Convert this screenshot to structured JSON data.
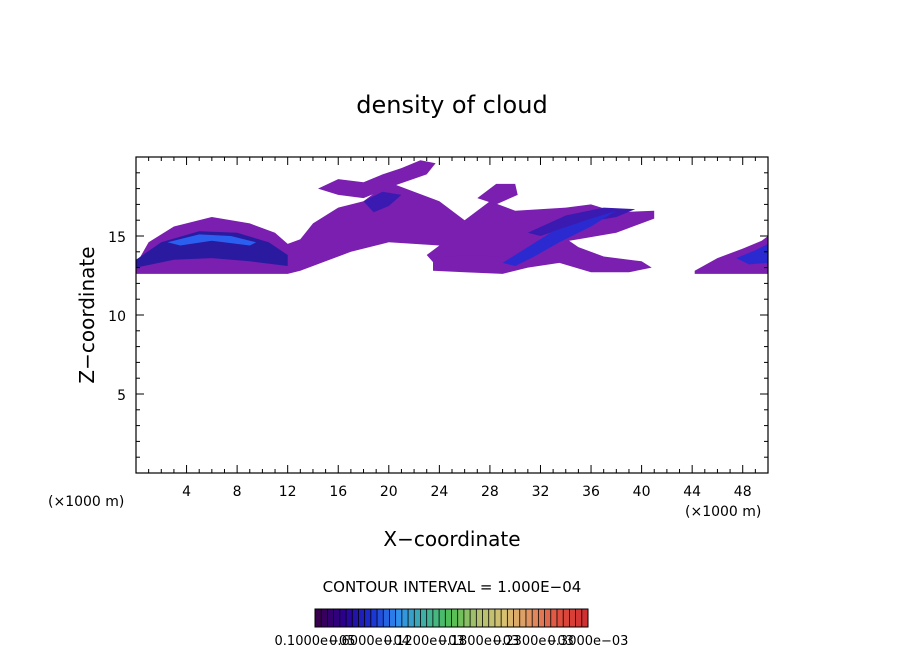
{
  "chart_data": {
    "type": "heatmap",
    "title": "density of cloud",
    "xlabel": "X−coordinate",
    "ylabel": "Z−coordinate",
    "x_unit_left": "(×1000 m)",
    "x_unit_right": "(×1000 m)",
    "xlim": [
      0,
      50
    ],
    "ylim": [
      0,
      20
    ],
    "x_ticks": [
      4,
      8,
      12,
      16,
      20,
      24,
      28,
      32,
      36,
      40,
      44,
      48
    ],
    "y_ticks": [
      5,
      10,
      15
    ],
    "contour_interval": "CONTOUR INTERVAL = 1.000E−04",
    "colorbar_labels": [
      "0.1000e−05",
      "0.6000e−04",
      "0.1200e−03",
      "0.1800e−03",
      "0.2300e−03",
      "0.3000e−03"
    ],
    "colorbar_colors": [
      "#3a0050",
      "#2b0090",
      "#1a2fd0",
      "#2f8ff0",
      "#40b0a0",
      "#50c050",
      "#b0c070",
      "#d8c070",
      "#e09060",
      "#e05040",
      "#d03030"
    ],
    "regions": [
      {
        "name": "main-band",
        "color": "#7a1fb0",
        "points": [
          [
            0,
            13.2
          ],
          [
            1,
            14.6
          ],
          [
            3,
            15.6
          ],
          [
            6,
            16.2
          ],
          [
            9,
            15.8
          ],
          [
            11,
            15.2
          ],
          [
            12,
            14.5
          ],
          [
            13,
            14.8
          ],
          [
            14,
            15.8
          ],
          [
            16,
            16.8
          ],
          [
            18,
            17.2
          ],
          [
            20,
            18.4
          ],
          [
            24,
            17.2
          ],
          [
            26,
            16.0
          ],
          [
            28,
            17.2
          ],
          [
            30,
            16.6
          ],
          [
            34,
            16.8
          ],
          [
            36,
            17.0
          ],
          [
            38,
            16.5
          ],
          [
            41,
            16.6
          ],
          [
            41,
            16.1
          ],
          [
            38,
            15.2
          ],
          [
            35,
            14.8
          ],
          [
            32,
            14.4
          ],
          [
            30,
            13.2
          ],
          [
            27,
            12.8
          ],
          [
            24,
            12.9
          ],
          [
            23,
            13.8
          ],
          [
            24,
            14.4
          ],
          [
            20,
            14.6
          ],
          [
            17,
            14.0
          ],
          [
            15,
            13.4
          ],
          [
            13,
            12.8
          ],
          [
            12,
            12.6
          ],
          [
            10,
            12.6
          ],
          [
            6,
            12.6
          ],
          [
            2,
            12.6
          ],
          [
            0,
            12.6
          ]
        ]
      },
      {
        "name": "top-patch",
        "color": "#7a1fb0",
        "points": [
          [
            14.4,
            18.0
          ],
          [
            16,
            18.6
          ],
          [
            18,
            18.4
          ],
          [
            19.5,
            18.9
          ],
          [
            21,
            19.3
          ],
          [
            22.5,
            19.8
          ],
          [
            23.7,
            19.6
          ],
          [
            23,
            18.9
          ],
          [
            20.5,
            18.2
          ],
          [
            18,
            17.4
          ],
          [
            16,
            17.6
          ]
        ]
      },
      {
        "name": "right-top-patch",
        "color": "#7a1fb0",
        "points": [
          [
            27,
            17.4
          ],
          [
            28.5,
            18.3
          ],
          [
            30,
            18.3
          ],
          [
            30.2,
            17.6
          ],
          [
            28.5,
            17.0
          ]
        ]
      },
      {
        "name": "lower-patch",
        "color": "#7a1fb0",
        "points": [
          [
            23.5,
            13.6
          ],
          [
            26,
            13.8
          ],
          [
            29,
            13.7
          ],
          [
            31,
            14.2
          ],
          [
            33,
            15.4
          ],
          [
            35,
            14.3
          ],
          [
            37,
            13.7
          ],
          [
            40,
            13.4
          ],
          [
            40.8,
            13.0
          ],
          [
            39,
            12.7
          ],
          [
            36,
            12.7
          ],
          [
            33.5,
            13.3
          ],
          [
            31,
            13.0
          ],
          [
            29,
            12.6
          ],
          [
            26,
            12.7
          ],
          [
            23.5,
            12.8
          ]
        ]
      },
      {
        "name": "right-edge-patch",
        "color": "#7a1fb0",
        "points": [
          [
            44.2,
            12.8
          ],
          [
            46,
            13.6
          ],
          [
            48,
            14.2
          ],
          [
            49.5,
            14.7
          ],
          [
            50,
            15.0
          ],
          [
            50,
            12.6
          ],
          [
            44.2,
            12.6
          ]
        ]
      },
      {
        "name": "core-band",
        "color": "#2a1aa0",
        "points": [
          [
            0,
            13.5
          ],
          [
            2,
            14.6
          ],
          [
            5,
            15.3
          ],
          [
            8,
            15.2
          ],
          [
            10.5,
            14.6
          ],
          [
            12,
            13.8
          ],
          [
            12,
            13.1
          ],
          [
            9,
            13.4
          ],
          [
            6,
            13.6
          ],
          [
            3,
            13.5
          ],
          [
            0,
            13.0
          ]
        ]
      },
      {
        "name": "core-highlight",
        "color": "#2a5ff0",
        "points": [
          [
            2.5,
            14.6
          ],
          [
            5,
            15.1
          ],
          [
            7.5,
            15.0
          ],
          [
            9.5,
            14.6
          ],
          [
            9,
            14.4
          ],
          [
            6,
            14.7
          ],
          [
            3.5,
            14.4
          ]
        ]
      },
      {
        "name": "mid-core",
        "color": "#3a1ab0",
        "points": [
          [
            18,
            17.2
          ],
          [
            19.5,
            17.8
          ],
          [
            21,
            17.6
          ],
          [
            20,
            16.9
          ],
          [
            18.8,
            16.5
          ]
        ]
      },
      {
        "name": "upper-right-core",
        "color": "#3a1ab0",
        "points": [
          [
            31,
            15.2
          ],
          [
            34,
            16.3
          ],
          [
            37,
            16.8
          ],
          [
            39.5,
            16.7
          ],
          [
            38,
            16.2
          ],
          [
            35,
            15.8
          ],
          [
            32,
            15.0
          ]
        ]
      },
      {
        "name": "diagonal-core",
        "color": "#2a2ad0",
        "points": [
          [
            29,
            13.3
          ],
          [
            31,
            14.3
          ],
          [
            33,
            15.3
          ],
          [
            36,
            16.1
          ],
          [
            38,
            16.6
          ],
          [
            36,
            15.6
          ],
          [
            33.5,
            14.6
          ],
          [
            31.5,
            13.7
          ],
          [
            30,
            13.1
          ]
        ]
      },
      {
        "name": "right-edge-core",
        "color": "#2a2ad0",
        "points": [
          [
            47.5,
            13.6
          ],
          [
            49,
            14.1
          ],
          [
            50,
            14.5
          ],
          [
            50,
            13.3
          ],
          [
            48.5,
            13.2
          ]
        ]
      }
    ]
  }
}
